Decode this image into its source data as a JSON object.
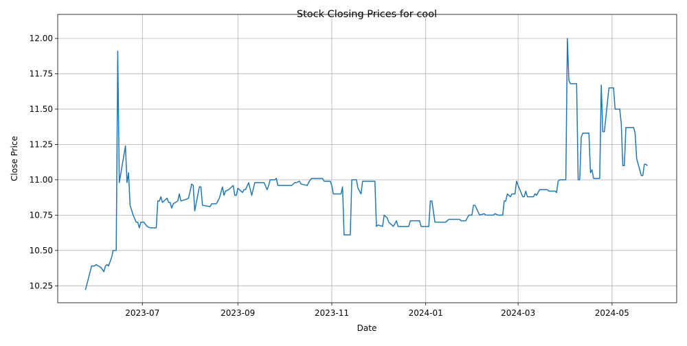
{
  "chart_data": {
    "type": "line",
    "title": "Stock Closing Prices for cool",
    "x_label": "Date",
    "y_label": "Close Price",
    "grid": true,
    "xlim": [
      19484,
      19886
    ],
    "xticks": [
      {
        "value": 19539,
        "label": "2023-07"
      },
      {
        "value": 19601,
        "label": "2023-09"
      },
      {
        "value": 19662,
        "label": "2023-11"
      },
      {
        "value": 19723,
        "label": "2024-01"
      },
      {
        "value": 19783,
        "label": "2024-03"
      },
      {
        "value": 19844,
        "label": "2024-05"
      }
    ],
    "ylim": [
      10.13,
      12.17
    ],
    "yticks": [
      10.25,
      {
        "value": 10.5,
        "label": "10.50"
      },
      10.75,
      {
        "value": 11,
        "label": "11.00"
      },
      11.25,
      {
        "value": 11.5,
        "label": "11.50"
      },
      11.75,
      {
        "value": 12,
        "label": "12.00"
      }
    ],
    "x": [
      19502,
      19506,
      19508,
      19509,
      19512,
      19514,
      19515,
      19516,
      19517,
      19519,
      19520,
      19522,
      19523,
      19524,
      19528,
      19529,
      19530,
      19531,
      19533,
      19535,
      19536,
      19537,
      19538,
      19540,
      19542,
      19544,
      19548,
      19549,
      19550,
      19551,
      19552,
      19555,
      19556,
      19557,
      19558,
      19559,
      19562,
      19563,
      19564,
      19567,
      19569,
      19571,
      19572,
      19573,
      19576,
      19577,
      19578,
      19583,
      19584,
      19587,
      19589,
      19591,
      19592,
      19593,
      19595,
      19597,
      19598,
      19599,
      19600,
      19601,
      19604,
      19605,
      19606,
      19608,
      19610,
      19612,
      19618,
      19620,
      19621,
      19622,
      19625,
      19626,
      19627,
      19635,
      19636,
      19638,
      19639,
      19641,
      19642,
      19646,
      19648,
      19649,
      19656,
      19657,
      19661,
      19662,
      19663,
      19668,
      19669,
      19670,
      19674,
      19675,
      19678,
      19679,
      19681,
      19682,
      19690,
      19691,
      19692,
      19695,
      19696,
      19698,
      19699,
      19702,
      19704,
      19705,
      19712,
      19713,
      19714,
      19719,
      19720,
      19725,
      19726,
      19727,
      19729,
      19736,
      19738,
      19745,
      19746,
      19749,
      19751,
      19753,
      19754,
      19755,
      19758,
      19761,
      19762,
      19767,
      19768,
      19770,
      19773,
      19774,
      19775,
      19776,
      19778,
      19779,
      19781,
      19782,
      19783,
      19786,
      19787,
      19788,
      19789,
      19793,
      19794,
      19795,
      19797,
      19802,
      19803,
      19807,
      19808,
      19809,
      19810,
      19814,
      19815,
      19816,
      19817,
      19821,
      19822,
      19823,
      19824,
      19825,
      19829,
      19830,
      19831,
      19832,
      19836,
      19837,
      19838,
      19839,
      19842,
      19845,
      19846,
      19849,
      19850,
      19851,
      19852,
      19853,
      19858,
      19859,
      19860,
      19863,
      19864,
      19865,
      19866,
      19867
    ],
    "series": [
      {
        "name": "Close Price",
        "color": "#1f77b4",
        "values": [
          10.22,
          10.39,
          10.39,
          10.4,
          10.38,
          10.35,
          10.39,
          10.4,
          10.39,
          10.45,
          10.5,
          10.5,
          11.91,
          10.98,
          11.24,
          10.98,
          11.05,
          10.82,
          10.75,
          10.7,
          10.7,
          10.66,
          10.7,
          10.7,
          10.67,
          10.66,
          10.66,
          10.85,
          10.85,
          10.88,
          10.84,
          10.87,
          10.84,
          10.84,
          10.8,
          10.83,
          10.85,
          10.9,
          10.85,
          10.86,
          10.87,
          10.97,
          10.96,
          10.78,
          10.95,
          10.95,
          10.82,
          10.81,
          10.83,
          10.83,
          10.87,
          10.95,
          10.89,
          10.92,
          10.93,
          10.95,
          10.96,
          10.89,
          10.89,
          10.94,
          10.91,
          10.93,
          10.93,
          10.98,
          10.89,
          10.98,
          10.98,
          10.93,
          10.96,
          11.0,
          11.0,
          11.01,
          10.96,
          10.96,
          10.96,
          10.98,
          10.98,
          10.99,
          10.97,
          10.96,
          11.0,
          11.01,
          11.01,
          10.99,
          10.99,
          10.96,
          10.9,
          10.9,
          10.95,
          10.61,
          10.61,
          11.0,
          11.0,
          10.94,
          10.9,
          10.99,
          10.99,
          10.67,
          10.68,
          10.67,
          10.75,
          10.73,
          10.7,
          10.67,
          10.71,
          10.67,
          10.67,
          10.71,
          10.71,
          10.71,
          10.67,
          10.67,
          10.85,
          10.85,
          10.7,
          10.7,
          10.72,
          10.72,
          10.71,
          10.71,
          10.75,
          10.75,
          10.82,
          10.82,
          10.75,
          10.76,
          10.75,
          10.75,
          10.76,
          10.75,
          10.75,
          10.85,
          10.85,
          10.9,
          10.88,
          10.9,
          10.9,
          10.99,
          10.96,
          10.88,
          10.88,
          10.92,
          10.88,
          10.88,
          10.9,
          10.89,
          10.93,
          10.93,
          10.92,
          10.92,
          10.91,
          10.99,
          11.0,
          11.0,
          12.0,
          11.7,
          11.68,
          11.68,
          11.0,
          11.0,
          11.3,
          11.33,
          11.33,
          11.05,
          11.07,
          11.01,
          11.01,
          11.67,
          11.34,
          11.34,
          11.65,
          11.65,
          11.5,
          11.5,
          11.4,
          11.1,
          11.1,
          11.37,
          11.37,
          11.33,
          11.15,
          11.03,
          11.03,
          11.11,
          11.11,
          11.1
        ]
      }
    ]
  }
}
